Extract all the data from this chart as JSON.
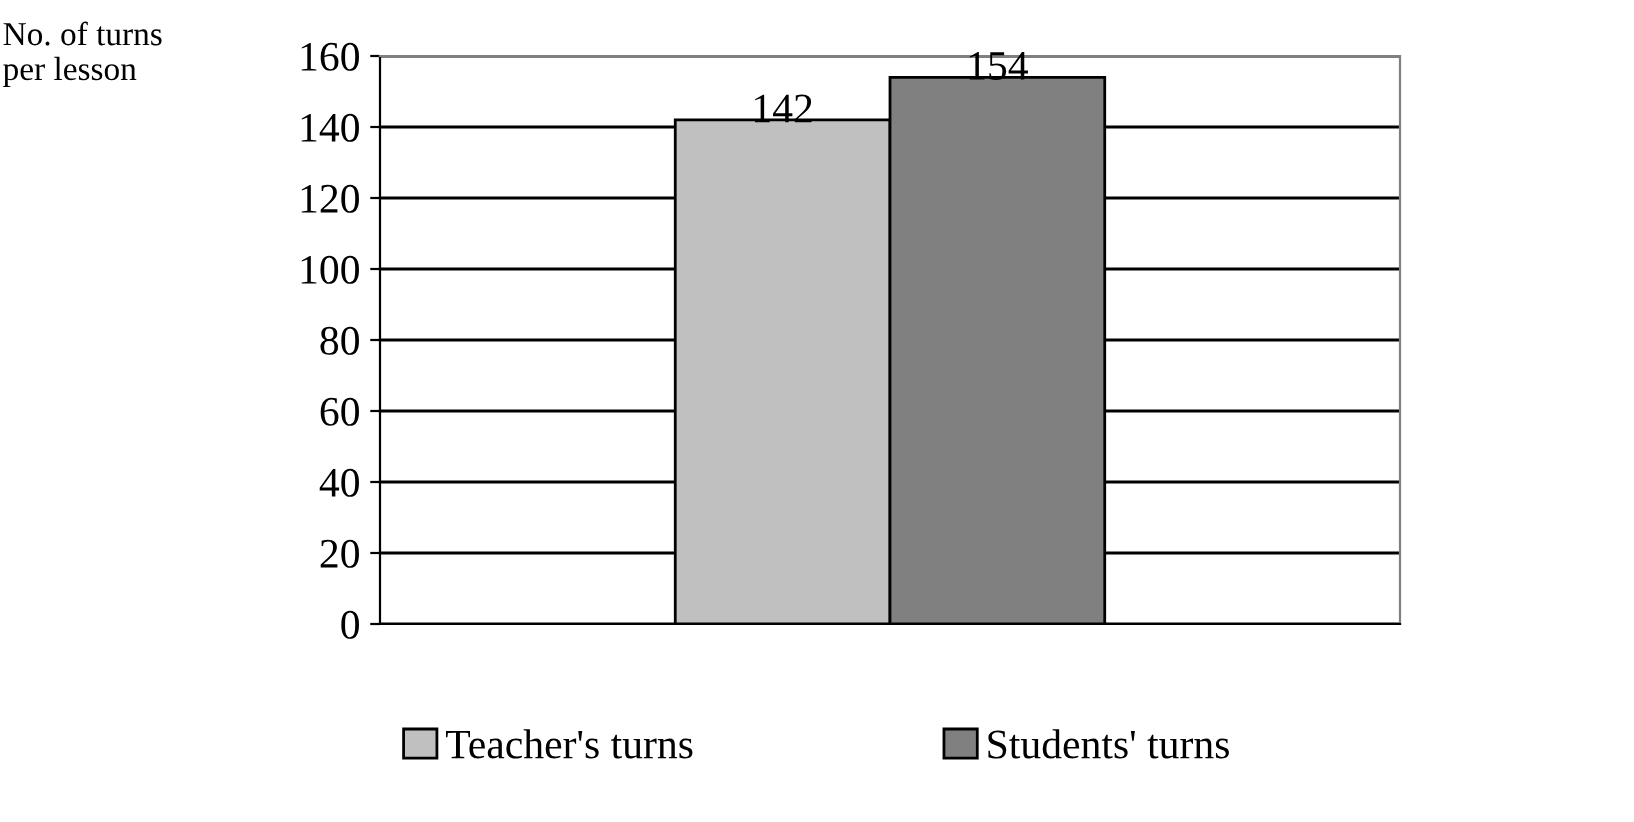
{
  "chart_data": {
    "type": "bar",
    "ylabel": "No. of turns\nper lesson",
    "categories": [
      null
    ],
    "series": [
      {
        "name": "Teacher's turns",
        "color": "#c0c0c0",
        "values": [
          142
        ]
      },
      {
        "name": "Students' turns",
        "color": "#808080",
        "values": [
          154
        ]
      }
    ],
    "ylim": [
      0,
      160
    ],
    "yticks": [
      0,
      20,
      40,
      60,
      80,
      100,
      120,
      140,
      160
    ],
    "grid": "y",
    "legend": "bottom",
    "data_labels": true
  }
}
